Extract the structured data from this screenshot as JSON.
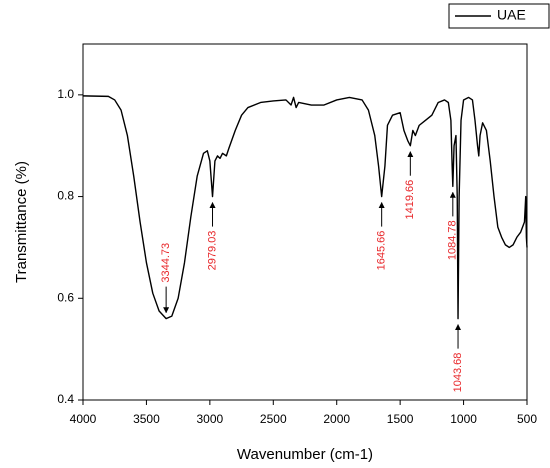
{
  "chart_data": {
    "type": "line",
    "x_label": "Wavenumber (cm-1)",
    "y_label": "Transmittance (%)",
    "xlim": [
      4000,
      500
    ],
    "ylim": [
      0.4,
      1.1
    ],
    "xticks": [
      4000,
      3500,
      3000,
      2500,
      2000,
      1500,
      1000,
      500
    ],
    "yticks": [
      0.4,
      0.6,
      0.8,
      {
        "value": 1,
        "label": "1.0"
      }
    ],
    "legend": "top-right",
    "x": [
      4000,
      3800,
      3750,
      3700,
      3650,
      3600,
      3550,
      3500,
      3450,
      3400,
      3344.73,
      3300,
      3250,
      3200,
      3150,
      3100,
      3050,
      3020,
      3000,
      2979.03,
      2960,
      2940,
      2920,
      2900,
      2870,
      2850,
      2800,
      2750,
      2700,
      2600,
      2500,
      2400,
      2360,
      2340,
      2320,
      2300,
      2200,
      2100,
      2000,
      1900,
      1800,
      1750,
      1700,
      1670,
      1645.66,
      1620,
      1600,
      1560,
      1500,
      1470,
      1440,
      1419.66,
      1400,
      1380,
      1350,
      1300,
      1250,
      1200,
      1150,
      1120,
      1100,
      1090,
      1084.78,
      1075,
      1060,
      1050,
      1043.68,
      1035,
      1020,
      1000,
      960,
      930,
      910,
      890,
      880,
      870,
      850,
      820,
      790,
      760,
      730,
      700,
      670,
      640,
      610,
      580,
      550,
      520,
      510,
      505,
      500
    ],
    "series": [
      {
        "name": "UAE",
        "color": "#000000",
        "values": [
          0.998,
          0.997,
          0.99,
          0.97,
          0.92,
          0.84,
          0.75,
          0.67,
          0.61,
          0.575,
          0.56,
          0.565,
          0.6,
          0.67,
          0.76,
          0.84,
          0.885,
          0.89,
          0.87,
          0.8,
          0.87,
          0.88,
          0.875,
          0.885,
          0.88,
          0.895,
          0.93,
          0.96,
          0.975,
          0.985,
          0.988,
          0.99,
          0.98,
          0.995,
          0.975,
          0.985,
          0.98,
          0.98,
          0.99,
          0.995,
          0.99,
          0.97,
          0.92,
          0.86,
          0.8,
          0.86,
          0.94,
          0.96,
          0.965,
          0.93,
          0.91,
          0.9,
          0.93,
          0.92,
          0.94,
          0.95,
          0.96,
          0.985,
          0.99,
          0.985,
          0.95,
          0.86,
          0.82,
          0.9,
          0.92,
          0.8,
          0.56,
          0.8,
          0.95,
          0.99,
          0.995,
          0.99,
          0.95,
          0.9,
          0.88,
          0.92,
          0.945,
          0.93,
          0.87,
          0.8,
          0.74,
          0.72,
          0.705,
          0.7,
          0.705,
          0.72,
          0.73,
          0.75,
          0.8,
          0.72,
          0.7
        ]
      }
    ],
    "annotations": [
      {
        "label": "3344.73",
        "x": 3344.73,
        "y": 0.56
      },
      {
        "label": "2979.03",
        "x": 2979.03,
        "y": 0.8
      },
      {
        "label": "1645.66",
        "x": 1645.66,
        "y": 0.8
      },
      {
        "label": "1419.66",
        "x": 1419.66,
        "y": 0.9
      },
      {
        "label": "1084.78",
        "x": 1084.78,
        "y": 0.82
      },
      {
        "label": "1043.68",
        "x": 1043.68,
        "y": 0.56
      }
    ]
  }
}
